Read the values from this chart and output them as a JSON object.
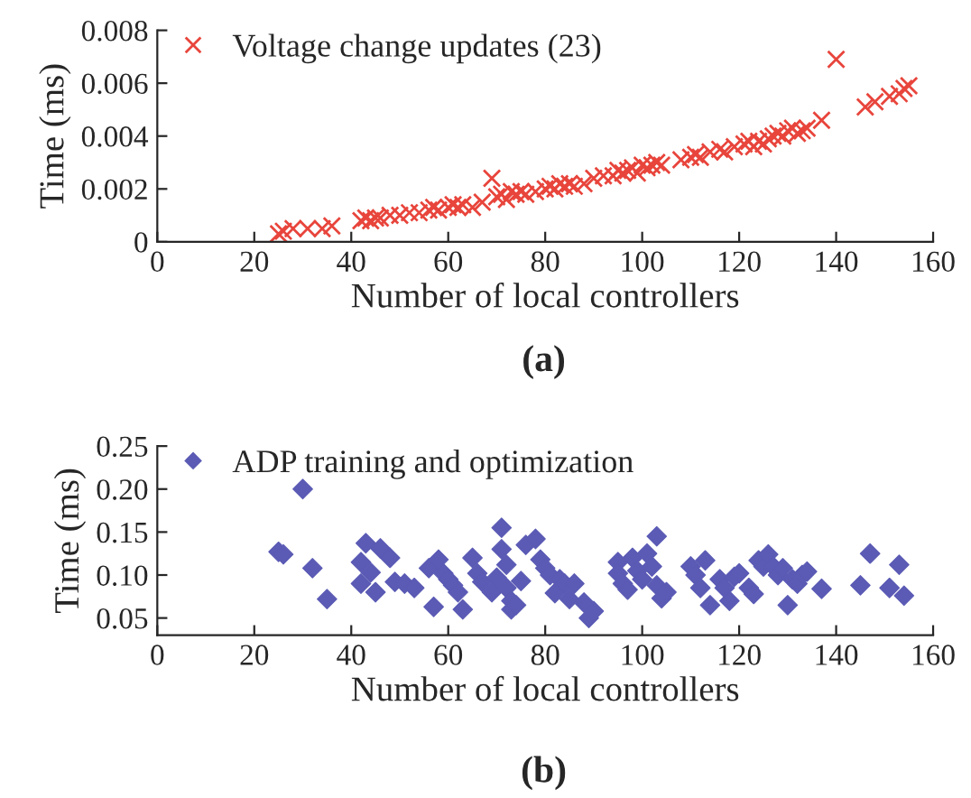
{
  "chart_data": [
    {
      "type": "scatter",
      "xlabel": "Number of local controllers",
      "ylabel": "Time (ms)",
      "annotations": [
        "(a)"
      ],
      "legend": "top left",
      "grid": false,
      "marker": "cross",
      "xlim": [
        0,
        160
      ],
      "xticks": [
        0,
        20,
        40,
        60,
        80,
        100,
        120,
        140,
        160
      ],
      "ylim": [
        0,
        0.008
      ],
      "yticks": [
        0,
        0.002,
        0.004,
        0.006,
        0.008
      ],
      "series": [
        {
          "name": "Voltage change updates (23)",
          "color": "#e8453c",
          "x": [
            25,
            26,
            28,
            31,
            34,
            36,
            42,
            43,
            44,
            45,
            46,
            48,
            50,
            52,
            54,
            56,
            57,
            58,
            60,
            61,
            62,
            63,
            65,
            67,
            69,
            70,
            71,
            72,
            73,
            74,
            75,
            76,
            78,
            80,
            81,
            82,
            83,
            84,
            85,
            86,
            88,
            90,
            92,
            94,
            95,
            96,
            97,
            98,
            99,
            100,
            101,
            102,
            103,
            104,
            108,
            110,
            111,
            112,
            114,
            116,
            117,
            119,
            121,
            122,
            123,
            124,
            125,
            126,
            127,
            128,
            129,
            130,
            131,
            132,
            133,
            134,
            137,
            140,
            146,
            148,
            151,
            153,
            154,
            155
          ],
          "values": [
            0.0003,
            0.0004,
            0.0005,
            0.0005,
            0.0005,
            0.0006,
            0.0008,
            0.0009,
            0.0008,
            0.0009,
            0.0009,
            0.001,
            0.001,
            0.0011,
            0.0011,
            0.0012,
            0.0013,
            0.0012,
            0.0013,
            0.0014,
            0.0013,
            0.0014,
            0.0013,
            0.0015,
            0.0024,
            0.0017,
            0.0018,
            0.0016,
            0.0019,
            0.0018,
            0.0019,
            0.0018,
            0.0019,
            0.002,
            0.0021,
            0.002,
            0.0022,
            0.0021,
            0.0022,
            0.0021,
            0.0022,
            0.0024,
            0.0025,
            0.0025,
            0.0027,
            0.0026,
            0.0027,
            0.0028,
            0.0026,
            0.0029,
            0.0028,
            0.0029,
            0.003,
            0.0029,
            0.0031,
            0.0032,
            0.0033,
            0.0032,
            0.0034,
            0.0035,
            0.0034,
            0.0036,
            0.0037,
            0.0038,
            0.0036,
            0.0038,
            0.0037,
            0.0039,
            0.004,
            0.0041,
            0.004,
            0.0042,
            0.0043,
            0.0041,
            0.0042,
            0.0043,
            0.0046,
            0.0069,
            0.0051,
            0.0053,
            0.0055,
            0.0056,
            0.0058,
            0.0059
          ]
        }
      ]
    },
    {
      "type": "scatter",
      "xlabel": "Number of local controllers",
      "ylabel": "Time (ms)",
      "annotations": [
        "(b)"
      ],
      "legend": "top left",
      "grid": false,
      "marker": "diamond",
      "xlim": [
        0,
        160
      ],
      "xticks": [
        0,
        20,
        40,
        60,
        80,
        100,
        120,
        140,
        160
      ],
      "ylim": [
        0.03,
        0.25
      ],
      "yticks": [
        {
          "value": 0.05,
          "label": "0.05"
        },
        {
          "value": 0.1,
          "label": "0.10"
        },
        {
          "value": 0.15,
          "label": "0.15"
        },
        {
          "value": 0.2,
          "label": "0.20"
        },
        {
          "value": 0.25,
          "label": "0.25"
        }
      ],
      "series": [
        {
          "name": "ADP training and optimization",
          "color": "#5b5bb5",
          "x": [
            25,
            26,
            30,
            32,
            35,
            42,
            42,
            43,
            44,
            45,
            46,
            48,
            49,
            51,
            53,
            56,
            57,
            58,
            59,
            60,
            61,
            62,
            63,
            65,
            66,
            67,
            69,
            70,
            71,
            71,
            72,
            72,
            73,
            73,
            74,
            75,
            76,
            78,
            79,
            80,
            81,
            82,
            83,
            84,
            85,
            86,
            88,
            89,
            90,
            95,
            95,
            96,
            97,
            98,
            99,
            100,
            101,
            102,
            103,
            103,
            104,
            105,
            110,
            111,
            112,
            113,
            114,
            116,
            117,
            118,
            119,
            120,
            122,
            123,
            124,
            125,
            126,
            127,
            128,
            129,
            130,
            131,
            132,
            133,
            134,
            137,
            145,
            147,
            151,
            153,
            154
          ],
          "values": [
            0.127,
            0.124,
            0.2,
            0.108,
            0.072,
            0.09,
            0.115,
            0.137,
            0.103,
            0.08,
            0.131,
            0.12,
            0.092,
            0.09,
            0.085,
            0.108,
            0.063,
            0.118,
            0.102,
            0.095,
            0.088,
            0.08,
            0.06,
            0.12,
            0.102,
            0.092,
            0.08,
            0.097,
            0.155,
            0.13,
            0.112,
            0.085,
            0.07,
            0.06,
            0.065,
            0.093,
            0.135,
            0.142,
            0.118,
            0.108,
            0.1,
            0.079,
            0.095,
            0.09,
            0.072,
            0.09,
            0.068,
            0.05,
            0.058,
            0.115,
            0.102,
            0.09,
            0.083,
            0.12,
            0.105,
            0.095,
            0.125,
            0.11,
            0.145,
            0.088,
            0.073,
            0.08,
            0.11,
            0.1,
            0.085,
            0.117,
            0.065,
            0.095,
            0.085,
            0.07,
            0.098,
            0.102,
            0.085,
            0.078,
            0.117,
            0.11,
            0.124,
            0.11,
            0.1,
            0.108,
            0.065,
            0.095,
            0.09,
            0.1,
            0.104,
            0.084,
            0.088,
            0.125,
            0.085,
            0.112,
            0.076
          ]
        }
      ]
    }
  ]
}
